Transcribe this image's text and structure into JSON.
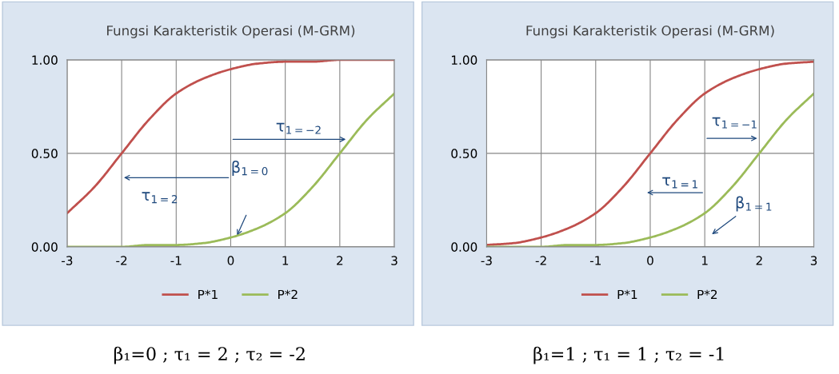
{
  "chart_data": [
    {
      "type": "line",
      "title": "Fungsi Karakteristik Operasi (M-GRM)",
      "x": [
        -3,
        -2.5,
        -2,
        -1.5,
        -1,
        -0.5,
        0,
        0.5,
        1,
        1.5,
        2,
        2.5,
        3
      ],
      "series": [
        {
          "name": "P*1",
          "color": "#c0504d",
          "values": [
            0.18,
            0.32,
            0.5,
            0.68,
            0.82,
            0.9,
            0.95,
            0.98,
            0.99,
            0.99,
            1.0,
            1.0,
            1.0
          ]
        },
        {
          "name": "P*2",
          "color": "#9bbb59",
          "values": [
            0,
            0,
            0,
            0.01,
            0.01,
            0.02,
            0.05,
            0.1,
            0.18,
            0.32,
            0.5,
            0.68,
            0.82
          ]
        }
      ],
      "xlim": [
        -3,
        3
      ],
      "xticks": [
        -3,
        -2,
        -1,
        0,
        1,
        2,
        3
      ],
      "ylim": [
        0,
        1
      ],
      "yticks": [
        {
          "value": 0,
          "label": "0.00"
        },
        {
          "value": 0.5,
          "label": "0.50"
        },
        {
          "value": 1,
          "label": "1.00"
        }
      ],
      "grid": true,
      "legend": "bottom",
      "marker": "none",
      "line_style": "solid",
      "annotations": [
        "τ$_{1=−2}$",
        "τ$_{1=2}$",
        "β$_{1=0}$",
        "β₁=0 ; τ₁ = 2 ; τ₂ = -2"
      ]
    },
    {
      "type": "line",
      "title": "Fungsi Karakteristik Operasi (M-GRM)",
      "x": [
        -3,
        -2.5,
        -2,
        -1.5,
        -1,
        -0.5,
        0,
        0.5,
        1,
        1.5,
        2,
        2.5,
        3
      ],
      "series": [
        {
          "name": "P*1",
          "color": "#c0504d",
          "values": [
            0.01,
            0.02,
            0.05,
            0.1,
            0.18,
            0.32,
            0.5,
            0.68,
            0.82,
            0.9,
            0.95,
            0.98,
            0.99
          ]
        },
        {
          "name": "P*2",
          "color": "#9bbb59",
          "values": [
            0,
            0,
            0,
            0.01,
            0.01,
            0.02,
            0.05,
            0.1,
            0.18,
            0.32,
            0.5,
            0.68,
            0.82
          ]
        }
      ],
      "xlim": [
        -3,
        3
      ],
      "xticks": [
        -3,
        -2,
        -1,
        0,
        1,
        2,
        3
      ],
      "ylim": [
        0,
        1
      ],
      "yticks": [
        {
          "value": 0,
          "label": "0.00"
        },
        {
          "value": 0.5,
          "label": "0.50"
        },
        {
          "value": 1,
          "label": "1.00"
        }
      ],
      "grid": true,
      "legend": "bottom",
      "marker": "none",
      "line_style": "solid",
      "annotations": [
        "τ$_{1=−1}$",
        "τ$_{1=1}$",
        "β$_{1=1}$",
        "β₁=1 ; τ₁ = 1 ; τ₂ = -1"
      ]
    }
  ]
}
